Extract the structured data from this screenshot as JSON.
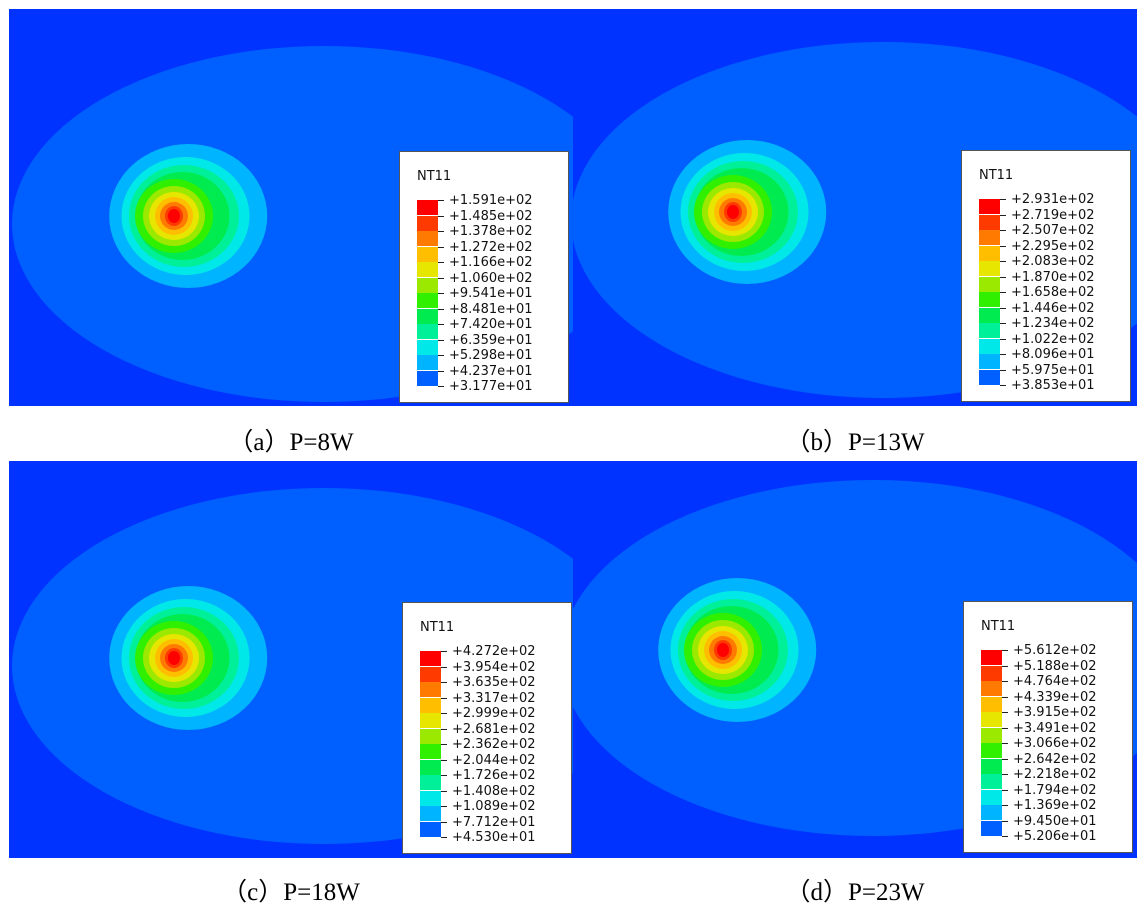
{
  "colors": {
    "background": "#0033FF",
    "contour_levels": [
      "#0000FF",
      "#0060FF",
      "#00B4FF",
      "#00E8E8",
      "#00F09A",
      "#00EB50",
      "#30F000",
      "#9BE800",
      "#E6E600",
      "#FFBE00",
      "#FF7A00",
      "#FF3A00",
      "#FF0000"
    ]
  },
  "panels": [
    {
      "caption": "（a）P=8W",
      "legend": {
        "title": "NT11",
        "values": [
          "+1.591e+02",
          "+1.485e+02",
          "+1.378e+02",
          "+1.272e+02",
          "+1.166e+02",
          "+1.060e+02",
          "+9.541e+01",
          "+8.481e+01",
          "+7.420e+01",
          "+6.359e+01",
          "+5.298e+01",
          "+4.237e+01",
          "+3.177e+01"
        ]
      }
    },
    {
      "caption": "（b）P=13W",
      "legend": {
        "title": "NT11",
        "values": [
          "+2.931e+02",
          "+2.719e+02",
          "+2.507e+02",
          "+2.295e+02",
          "+2.083e+02",
          "+1.870e+02",
          "+1.658e+02",
          "+1.446e+02",
          "+1.234e+02",
          "+1.022e+02",
          "+8.096e+01",
          "+5.975e+01",
          "+3.853e+01"
        ]
      }
    },
    {
      "caption": "（c）P=18W",
      "legend": {
        "title": "NT11",
        "values": [
          "+4.272e+02",
          "+3.954e+02",
          "+3.635e+02",
          "+3.317e+02",
          "+2.999e+02",
          "+2.681e+02",
          "+2.362e+02",
          "+2.044e+02",
          "+1.726e+02",
          "+1.408e+02",
          "+1.089e+02",
          "+7.712e+01",
          "+4.530e+01"
        ]
      }
    },
    {
      "caption": "（d）P=23W",
      "legend": {
        "title": "NT11",
        "values": [
          "+5.612e+02",
          "+5.188e+02",
          "+4.764e+02",
          "+4.339e+02",
          "+3.915e+02",
          "+3.491e+02",
          "+3.066e+02",
          "+2.642e+02",
          "+2.218e+02",
          "+1.794e+02",
          "+1.369e+02",
          "+9.450e+01",
          "+5.206e+01"
        ]
      }
    }
  ]
}
